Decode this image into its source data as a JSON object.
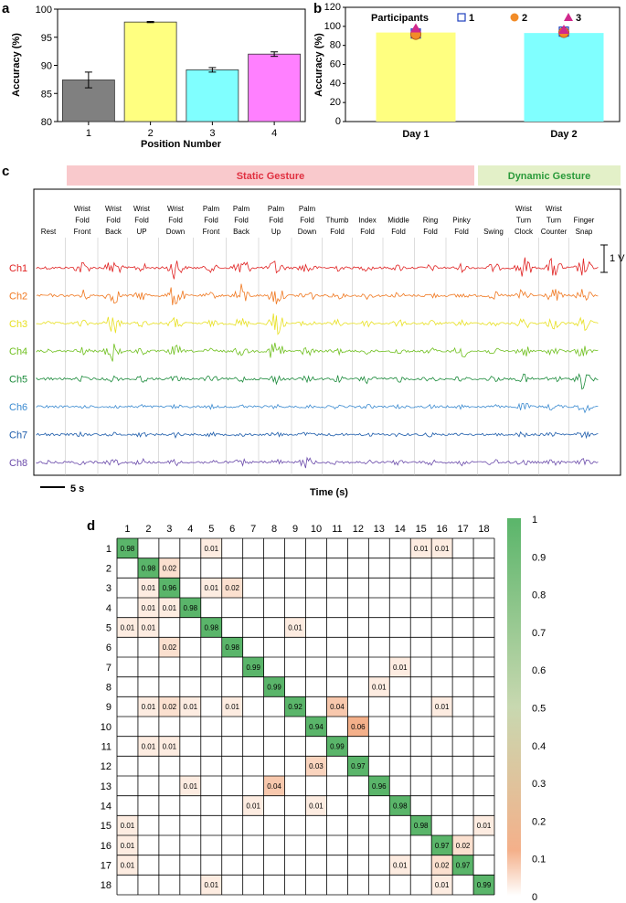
{
  "panels": {
    "a": "a",
    "b": "b",
    "c": "c",
    "d": "d"
  },
  "colors": {
    "bars_a": [
      "#808080",
      "#ffff80",
      "#80ffff",
      "#ff80ff"
    ],
    "bars_b": [
      "#ffff80",
      "#80ffff"
    ],
    "participants": [
      "#1f3fbf",
      "#f28c28",
      "#d0288c"
    ],
    "channels": [
      "#e02020",
      "#f07820",
      "#e8e020",
      "#70c020",
      "#1a8a3a",
      "#3a8ad0",
      "#1a5aaa",
      "#6a4aaa"
    ],
    "cm_high": "#5ab56a",
    "cm_low": "#f4b08a",
    "static_banner": "#f9c9cc",
    "dynamic_banner": "#e3f0c8"
  },
  "chart_data": [
    {
      "type": "bar",
      "panel": "a",
      "categories": [
        "1",
        "2",
        "3",
        "4"
      ],
      "values": [
        87.4,
        97.7,
        89.2,
        92.0
      ],
      "errors": [
        1.4,
        0.1,
        0.4,
        0.4
      ],
      "xlabel": "Position Number",
      "ylabel": "Accuracy (%)",
      "ylim": [
        80,
        100
      ],
      "yticks": [
        "80",
        "85",
        "90",
        "95",
        "100"
      ]
    },
    {
      "type": "bar",
      "panel": "b",
      "categories": [
        "Day 1",
        "Day 2"
      ],
      "values": [
        93.5,
        93.0
      ],
      "ylabel": "Accuracy (%)",
      "ylim": [
        0,
        120
      ],
      "yticks": [
        "0",
        "20",
        "40",
        "60",
        "80",
        "100",
        "120"
      ],
      "legend_title": "Participants",
      "series": [
        {
          "name": "1",
          "values": [
            92.5,
            94.5
          ]
        },
        {
          "name": "2",
          "values": [
            91.5,
            93.5
          ]
        },
        {
          "name": "3",
          "values": [
            97.5,
            96.0
          ]
        }
      ],
      "legend_position": "top"
    },
    {
      "type": "line",
      "panel": "c",
      "banners": [
        "Static Gesture",
        "Dynamic Gesture"
      ],
      "gestures": [
        "Rest",
        "Wrist Fold Front",
        "Wrist Fold Back",
        "Wrist Fold UP",
        "Wrist Fold Down",
        "Palm Fold Front",
        "Palm Fold Back",
        "Palm Fold Up",
        "Palm Fold Down",
        "Thumb Fold",
        "Index Fold",
        "Middle Fold",
        "Ring Fold",
        "Pinky Fold",
        "Swing",
        "Wrist Turn Clock",
        "Wrist Turn Counter",
        "Finger Snap"
      ],
      "channels": [
        "Ch1",
        "Ch2",
        "Ch3",
        "Ch4",
        "Ch5",
        "Ch6",
        "Ch7",
        "Ch8"
      ],
      "activity": [
        [
          0.15,
          0.15,
          0.15,
          0.15,
          0.15,
          0.15,
          0.15,
          0.15
        ],
        [
          0.6,
          0.5,
          0.3,
          0.35,
          0.25,
          0.15,
          0.2,
          0.25
        ],
        [
          0.8,
          0.7,
          0.9,
          0.9,
          0.3,
          0.2,
          0.2,
          0.35
        ],
        [
          0.4,
          0.4,
          0.3,
          0.35,
          0.3,
          0.2,
          0.25,
          0.35
        ],
        [
          0.95,
          1.0,
          0.5,
          0.5,
          0.3,
          0.2,
          0.25,
          0.3
        ],
        [
          0.35,
          0.3,
          0.3,
          0.3,
          0.3,
          0.2,
          0.2,
          0.3
        ],
        [
          1.0,
          0.9,
          0.5,
          0.4,
          0.3,
          0.2,
          0.2,
          0.3
        ],
        [
          0.7,
          0.8,
          1.0,
          1.0,
          0.4,
          0.2,
          0.25,
          0.3
        ],
        [
          0.6,
          0.6,
          0.35,
          0.4,
          0.3,
          0.2,
          0.25,
          0.5
        ],
        [
          0.3,
          0.3,
          0.3,
          0.3,
          0.3,
          0.2,
          0.2,
          0.25
        ],
        [
          0.3,
          0.3,
          0.3,
          0.3,
          0.5,
          0.2,
          0.2,
          0.25
        ],
        [
          0.3,
          0.3,
          0.3,
          0.3,
          0.3,
          0.2,
          0.2,
          0.25
        ],
        [
          0.3,
          0.3,
          0.3,
          0.3,
          0.3,
          0.2,
          0.2,
          0.25
        ],
        [
          0.35,
          0.3,
          0.3,
          0.6,
          0.3,
          0.2,
          0.2,
          0.3
        ],
        [
          0.4,
          0.35,
          0.3,
          0.3,
          0.3,
          0.2,
          0.2,
          0.3
        ],
        [
          0.9,
          0.6,
          0.5,
          0.5,
          0.4,
          0.35,
          0.3,
          0.3
        ],
        [
          0.9,
          0.6,
          0.5,
          0.4,
          0.4,
          0.35,
          0.3,
          0.3
        ],
        [
          0.8,
          0.6,
          0.6,
          0.6,
          0.9,
          0.5,
          0.3,
          0.3
        ]
      ],
      "scale_label": "1 V",
      "time_scale_label": "5 s",
      "xlabel": "Time (s)"
    },
    {
      "type": "heatmap",
      "panel": "d",
      "labels": [
        "1",
        "2",
        "3",
        "4",
        "5",
        "6",
        "7",
        "8",
        "9",
        "10",
        "11",
        "12",
        "13",
        "14",
        "15",
        "16",
        "17",
        "18"
      ],
      "cells": [
        [
          1,
          1,
          0.98
        ],
        [
          1,
          5,
          0.01
        ],
        [
          1,
          15,
          0.01
        ],
        [
          1,
          16,
          0.01
        ],
        [
          2,
          2,
          0.98
        ],
        [
          2,
          3,
          0.02
        ],
        [
          3,
          2,
          0.01
        ],
        [
          3,
          3,
          0.96
        ],
        [
          3,
          5,
          0.01
        ],
        [
          3,
          6,
          0.02
        ],
        [
          4,
          2,
          0.01
        ],
        [
          4,
          3,
          0.01
        ],
        [
          4,
          4,
          0.98
        ],
        [
          5,
          1,
          0.01
        ],
        [
          5,
          2,
          0.01
        ],
        [
          5,
          5,
          0.98
        ],
        [
          5,
          9,
          0.01
        ],
        [
          6,
          3,
          0.02
        ],
        [
          6,
          6,
          0.98
        ],
        [
          7,
          7,
          0.99
        ],
        [
          7,
          14,
          0.01
        ],
        [
          8,
          8,
          0.99
        ],
        [
          8,
          13,
          0.01
        ],
        [
          9,
          2,
          0.01
        ],
        [
          9,
          3,
          0.02
        ],
        [
          9,
          4,
          0.01
        ],
        [
          9,
          6,
          0.01
        ],
        [
          9,
          9,
          0.92
        ],
        [
          9,
          11,
          0.04
        ],
        [
          9,
          16,
          0.01
        ],
        [
          10,
          10,
          0.94
        ],
        [
          10,
          12,
          0.06
        ],
        [
          11,
          2,
          0.01
        ],
        [
          11,
          3,
          0.01
        ],
        [
          11,
          11,
          0.99
        ],
        [
          12,
          10,
          0.03
        ],
        [
          12,
          12,
          0.97
        ],
        [
          13,
          4,
          0.01
        ],
        [
          13,
          8,
          0.04
        ],
        [
          13,
          13,
          0.96
        ],
        [
          14,
          7,
          0.01
        ],
        [
          14,
          10,
          0.01
        ],
        [
          14,
          14,
          0.98
        ],
        [
          15,
          1,
          0.01
        ],
        [
          15,
          15,
          0.98
        ],
        [
          15,
          18,
          0.01
        ],
        [
          16,
          1,
          0.01
        ],
        [
          16,
          16,
          0.97
        ],
        [
          16,
          17,
          0.02
        ],
        [
          17,
          1,
          0.01
        ],
        [
          17,
          14,
          0.01
        ],
        [
          17,
          16,
          0.02
        ],
        [
          17,
          17,
          0.97
        ],
        [
          18,
          5,
          0.01
        ],
        [
          18,
          16,
          0.01
        ],
        [
          18,
          18,
          0.99
        ]
      ],
      "colorbar_ticks": [
        "0",
        "0.1",
        "0.2",
        "0.3",
        "0.4",
        "0.5",
        "0.6",
        "0.7",
        "0.8",
        "0.9",
        "1"
      ]
    }
  ]
}
